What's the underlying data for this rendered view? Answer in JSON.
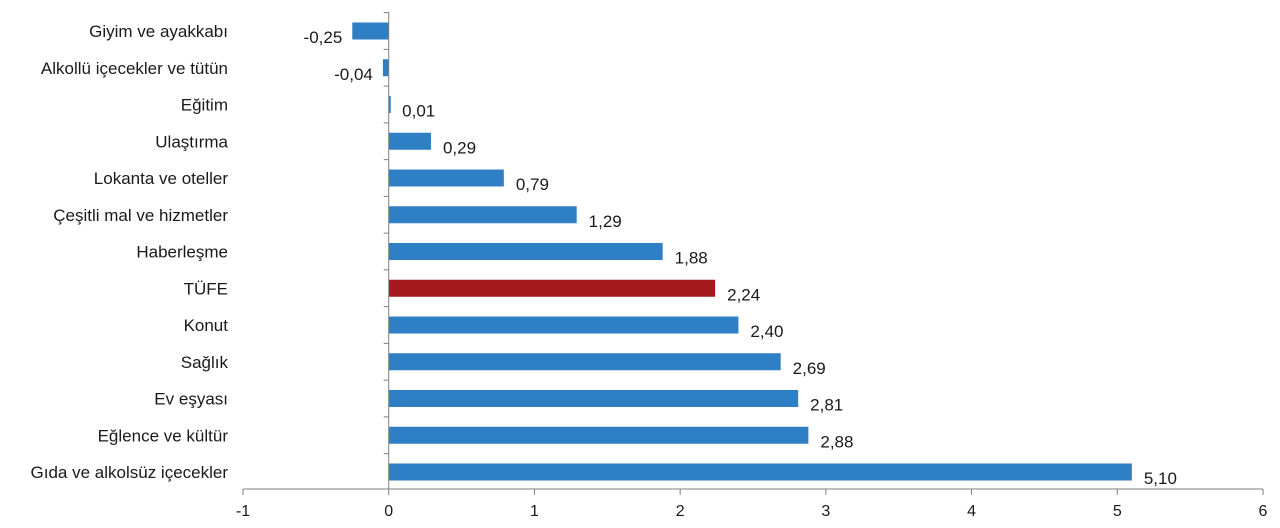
{
  "chart_data": {
    "type": "bar",
    "orientation": "horizontal",
    "categories": [
      "Giyim ve ayakkabı",
      "Alkollü içecekler ve tütün",
      "Eğitim",
      "Ulaştırma",
      "Lokanta ve oteller",
      "Çeşitli mal ve hizmetler",
      "Haberleşme",
      "TÜFE",
      "Konut",
      "Sağlık",
      "Ev eşyası",
      "Eğlence ve kültür",
      "Gıda ve alkolsüz içecekler"
    ],
    "values": [
      -0.25,
      -0.04,
      0.01,
      0.29,
      0.79,
      1.29,
      1.88,
      2.24,
      2.4,
      2.69,
      2.81,
      2.88,
      5.1
    ],
    "value_labels": [
      "-0,25",
      "-0,04",
      "0,01",
      "0,29",
      "0,79",
      "1,29",
      "1,88",
      "2,24",
      "2,40",
      "2,69",
      "2,81",
      "2,88",
      "5,10"
    ],
    "highlight_category": "TÜFE",
    "colors": {
      "bar": "#2e7fc3",
      "highlight": "#a5191c",
      "axis": "#7f7f7f",
      "text": "#1a1a1a"
    },
    "xlim": [
      -1,
      6
    ],
    "xticks": [
      -1,
      0,
      1,
      2,
      3,
      4,
      5,
      6
    ],
    "xtick_labels": [
      "-1",
      "0",
      "1",
      "2",
      "3",
      "4",
      "5",
      "6"
    ],
    "title": "",
    "xlabel": "",
    "ylabel": "",
    "grid": false,
    "legend": "none"
  }
}
